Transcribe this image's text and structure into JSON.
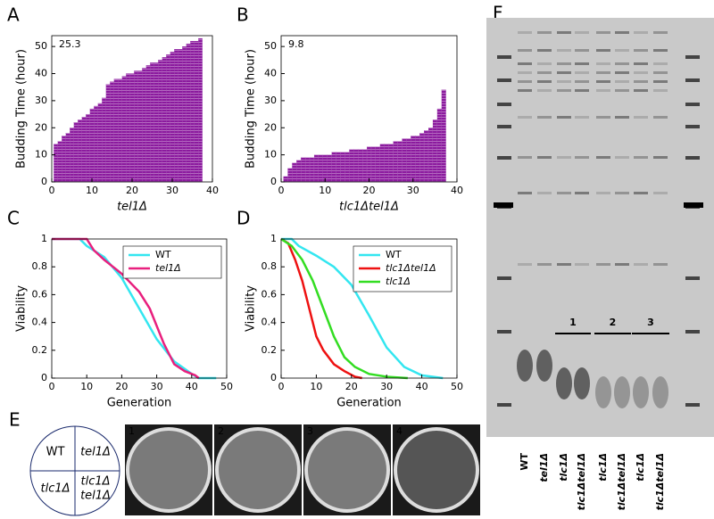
{
  "chart_data": [
    {
      "type": "bar",
      "panel": "A",
      "annotation": "25.3",
      "xlabel": "tel1Δ",
      "ylabel": "Budding Time (hour)",
      "color": "#8b1a9e",
      "x": [
        1,
        2,
        3,
        4,
        5,
        6,
        7,
        8,
        9,
        10,
        11,
        12,
        13,
        14,
        15,
        16,
        17,
        18,
        19,
        20,
        21,
        22,
        23,
        24,
        25,
        26,
        27,
        28,
        29,
        30,
        31,
        32,
        33,
        34,
        35,
        36,
        37
      ],
      "values": [
        14,
        15,
        17,
        18,
        20,
        22,
        23,
        24,
        25,
        27,
        28,
        29,
        31,
        36,
        37,
        38,
        38,
        39,
        40,
        40,
        41,
        41,
        42,
        43,
        44,
        44,
        45,
        46,
        47,
        48,
        49,
        49,
        50,
        51,
        52,
        52,
        53
      ],
      "xlim": [
        0,
        40
      ],
      "xticks": [
        0,
        10,
        20,
        30,
        40
      ],
      "ylim": [
        0,
        54
      ],
      "yticks": [
        0,
        10,
        20,
        30,
        40,
        50
      ]
    },
    {
      "type": "bar",
      "panel": "B",
      "annotation": "9.8",
      "xlabel": "tlc1Δtel1Δ",
      "ylabel": "Budding Time (hour)",
      "color": "#8b1a9e",
      "x": [
        1,
        2,
        3,
        4,
        5,
        6,
        7,
        8,
        9,
        10,
        11,
        12,
        13,
        14,
        15,
        16,
        17,
        18,
        19,
        20,
        21,
        22,
        23,
        24,
        25,
        26,
        27,
        28,
        29,
        30,
        31,
        32,
        33,
        34,
        35,
        36,
        37
      ],
      "values": [
        2,
        5,
        7,
        8,
        9,
        9,
        9,
        10,
        10,
        10,
        10,
        11,
        11,
        11,
        11,
        12,
        12,
        12,
        12,
        13,
        13,
        13,
        14,
        14,
        14,
        15,
        15,
        16,
        16,
        17,
        17,
        18,
        19,
        20,
        23,
        27,
        34
      ],
      "xlim": [
        0,
        40
      ],
      "xticks": [
        0,
        10,
        20,
        30,
        40
      ],
      "ylim": [
        0,
        54
      ],
      "yticks": [
        0,
        10,
        20,
        30,
        40,
        50
      ]
    },
    {
      "type": "line",
      "panel": "C",
      "xlabel": "Generation",
      "ylabel": "Viability",
      "legend": "upper right",
      "xlim": [
        0,
        50
      ],
      "xticks": [
        0,
        10,
        20,
        30,
        40,
        50
      ],
      "ylim": [
        0,
        1
      ],
      "yticks": [
        0,
        0.2,
        0.4,
        0.6,
        0.8,
        1
      ],
      "series": [
        {
          "name": "WT",
          "color": "#33e6f0",
          "x": [
            0,
            8,
            10,
            15,
            20,
            25,
            30,
            35,
            40,
            42,
            47
          ],
          "values": [
            1,
            1,
            0.95,
            0.87,
            0.72,
            0.5,
            0.28,
            0.12,
            0.03,
            0,
            0
          ]
        },
        {
          "name": "tel1Δ",
          "color": "#e8207e",
          "x": [
            0,
            10,
            12,
            15,
            20,
            25,
            28,
            32,
            35,
            38,
            41,
            42
          ],
          "values": [
            1,
            1,
            0.92,
            0.85,
            0.75,
            0.62,
            0.5,
            0.25,
            0.1,
            0.05,
            0.02,
            0
          ]
        }
      ]
    },
    {
      "type": "line",
      "panel": "D",
      "xlabel": "Generation",
      "ylabel": "Viability",
      "legend": "upper right",
      "xlim": [
        0,
        50
      ],
      "xticks": [
        0,
        10,
        20,
        30,
        40,
        50
      ],
      "ylim": [
        0,
        1
      ],
      "yticks": [
        0,
        0.2,
        0.4,
        0.6,
        0.8,
        1
      ],
      "series": [
        {
          "name": "WT",
          "color": "#33e6f0",
          "x": [
            0,
            3,
            5,
            10,
            15,
            20,
            25,
            30,
            35,
            40,
            46
          ],
          "values": [
            1,
            1,
            0.95,
            0.88,
            0.8,
            0.67,
            0.45,
            0.22,
            0.08,
            0.02,
            0
          ]
        },
        {
          "name": "tlc1Δtel1Δ",
          "color": "#ee1111",
          "x": [
            0,
            2,
            4,
            6,
            8,
            10,
            12,
            15,
            18,
            21,
            23
          ],
          "values": [
            1,
            0.97,
            0.85,
            0.7,
            0.5,
            0.3,
            0.2,
            0.1,
            0.05,
            0.01,
            0
          ]
        },
        {
          "name": "tlc1Δ",
          "color": "#33dd22",
          "x": [
            0,
            3,
            6,
            9,
            12,
            15,
            18,
            21,
            25,
            30,
            36
          ],
          "values": [
            1,
            0.95,
            0.85,
            0.7,
            0.5,
            0.3,
            0.15,
            0.08,
            0.03,
            0.01,
            0
          ]
        }
      ]
    }
  ],
  "plates": {
    "panel": "E",
    "quadrants": [
      "WT",
      "tel1Δ",
      "tlc1Δ",
      "tlc1Δ",
      "tel1Δ"
    ],
    "photos": [
      "1",
      "2",
      "3",
      "4"
    ]
  },
  "gel": {
    "panel": "F",
    "groups": [
      "1",
      "2",
      "3"
    ],
    "lanes": [
      "WT",
      "tel1Δ",
      "tlc1Δ",
      "tlc1Δtel1Δ",
      "tlc1Δ",
      "tlc1Δtel1Δ",
      "tlc1Δ",
      "tlc1Δtel1Δ"
    ]
  }
}
